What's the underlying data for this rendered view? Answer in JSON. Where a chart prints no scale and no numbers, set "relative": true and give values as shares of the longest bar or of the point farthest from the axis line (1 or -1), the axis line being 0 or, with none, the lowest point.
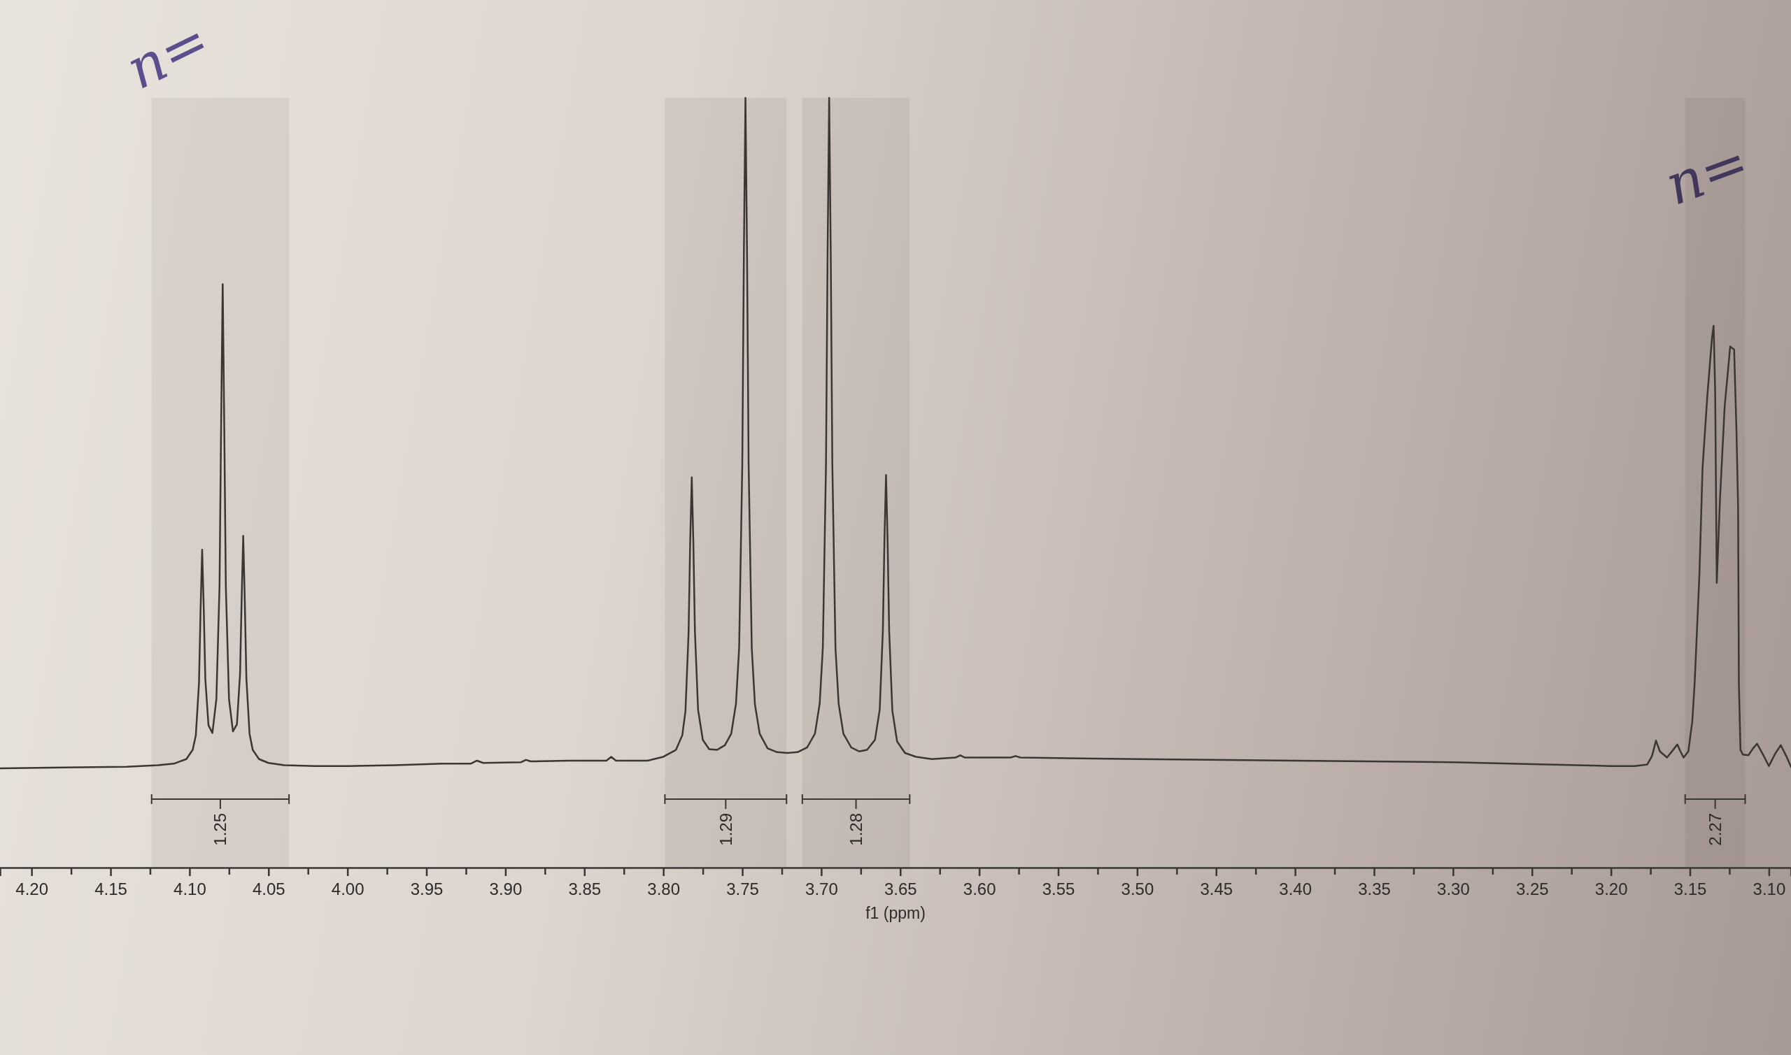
{
  "chart_data": {
    "type": "line",
    "relative": true,
    "xlabel": "f1 (ppm)",
    "xlim": [
      4.22,
      3.086
    ],
    "xticks": [
      {
        "value": 4.2,
        "label": "4.20"
      },
      {
        "value": 4.175,
        "label": null
      },
      4.15,
      {
        "value": 4.125,
        "label": null
      },
      {
        "value": 4.1,
        "label": "4.10"
      },
      {
        "value": 4.075,
        "label": null
      },
      4.05,
      {
        "value": 4.025,
        "label": null
      },
      {
        "value": 4,
        "label": "4.00"
      },
      {
        "value": 3.975,
        "label": null
      },
      3.95,
      {
        "value": 3.925,
        "label": null
      },
      {
        "value": 3.9,
        "label": "3.90"
      },
      {
        "value": 3.875,
        "label": null
      },
      3.85,
      {
        "value": 3.825,
        "label": null
      },
      {
        "value": 3.8,
        "label": "3.80"
      },
      {
        "value": 3.775,
        "label": null
      },
      3.75,
      {
        "value": 3.725,
        "label": null
      },
      {
        "value": 3.7,
        "label": "3.70"
      },
      {
        "value": 3.675,
        "label": null
      },
      3.65,
      {
        "value": 3.625,
        "label": null
      },
      {
        "value": 3.6,
        "label": "3.60"
      },
      {
        "value": 3.575,
        "label": null
      },
      3.55,
      {
        "value": 3.525,
        "label": null
      },
      {
        "value": 3.5,
        "label": "3.50"
      },
      {
        "value": 3.475,
        "label": null
      },
      3.45,
      {
        "value": 3.425,
        "label": null
      },
      {
        "value": 3.4,
        "label": "3.40"
      },
      {
        "value": 3.375,
        "label": null
      },
      3.35,
      {
        "value": 3.325,
        "label": null
      },
      {
        "value": 3.3,
        "label": "3.30"
      },
      {
        "value": 3.275,
        "label": null
      },
      3.25,
      {
        "value": 3.225,
        "label": null
      },
      {
        "value": 3.2,
        "label": "3.20"
      },
      {
        "value": 3.175,
        "label": null
      },
      3.15,
      {
        "value": 3.125,
        "label": null
      },
      {
        "value": 3.1,
        "label": "3.10"
      }
    ],
    "x": [
      4.22,
      4.18,
      4.14,
      4.12,
      4.11,
      4.102,
      4.098,
      4.096,
      4.094,
      4.093,
      4.092,
      4.091,
      4.09,
      4.088,
      4.0855,
      4.083,
      4.081,
      4.08,
      4.079,
      4.078,
      4.077,
      4.075,
      4.0725,
      4.07,
      4.068,
      4.067,
      4.066,
      4.065,
      4.064,
      4.062,
      4.06,
      4.056,
      4.05,
      4.04,
      4.02,
      4,
      3.97,
      3.94,
      3.922,
      3.918,
      3.914,
      3.89,
      3.887,
      3.884,
      3.86,
      3.836,
      3.833,
      3.83,
      3.81,
      3.8,
      3.792,
      3.788,
      3.786,
      3.784,
      3.783,
      3.782,
      3.781,
      3.78,
      3.778,
      3.775,
      3.771,
      3.766,
      3.761,
      3.757,
      3.754,
      3.752,
      3.75,
      3.749,
      3.748,
      3.747,
      3.746,
      3.744,
      3.742,
      3.739,
      3.734,
      3.728,
      3.7215,
      3.715,
      3.709,
      3.704,
      3.701,
      3.699,
      3.697,
      3.696,
      3.695,
      3.694,
      3.693,
      3.691,
      3.689,
      3.686,
      3.681,
      3.676,
      3.671,
      3.666,
      3.663,
      3.661,
      3.66,
      3.659,
      3.658,
      3.657,
      3.655,
      3.652,
      3.647,
      3.64,
      3.63,
      3.615,
      3.612,
      3.609,
      3.58,
      3.577,
      3.574,
      3.5,
      3.4,
      3.3,
      3.24,
      3.2,
      3.185,
      3.177,
      3.174,
      3.1715,
      3.169,
      3.1645,
      3.161,
      3.158,
      3.156,
      3.154,
      3.151,
      3.1485,
      3.147,
      3.144,
      3.142,
      3.139,
      3.136,
      3.135,
      3.134,
      3.133,
      3.131,
      3.128,
      3.1245,
      3.122,
      3.1205,
      3.1195,
      3.119,
      3.118,
      3.1165,
      3.113,
      3.11,
      3.1075,
      3.104,
      3.1,
      3.096,
      3.0925,
      3.089,
      3.086
    ],
    "series": [
      {
        "color": "#3a3633",
        "values": [
          0.129,
          0.13,
          0.131,
          0.133,
          0.135,
          0.141,
          0.153,
          0.172,
          0.24,
          0.335,
          0.413,
          0.337,
          0.245,
          0.185,
          0.175,
          0.219,
          0.366,
          0.573,
          0.758,
          0.572,
          0.365,
          0.219,
          0.177,
          0.186,
          0.252,
          0.348,
          0.431,
          0.346,
          0.246,
          0.174,
          0.153,
          0.141,
          0.136,
          0.133,
          0.132,
          0.132,
          0.133,
          0.135,
          0.135,
          0.139,
          0.136,
          0.137,
          0.14,
          0.138,
          0.139,
          0.139,
          0.144,
          0.139,
          0.139,
          0.144,
          0.153,
          0.172,
          0.203,
          0.306,
          0.423,
          0.507,
          0.423,
          0.307,
          0.205,
          0.166,
          0.154,
          0.153,
          0.159,
          0.174,
          0.213,
          0.286,
          0.525,
          0.798,
          1,
          0.798,
          0.525,
          0.285,
          0.212,
          0.174,
          0.155,
          0.15,
          0.149,
          0.15,
          0.156,
          0.174,
          0.213,
          0.286,
          0.525,
          0.798,
          1,
          0.798,
          0.525,
          0.285,
          0.213,
          0.174,
          0.156,
          0.151,
          0.153,
          0.166,
          0.205,
          0.308,
          0.425,
          0.51,
          0.424,
          0.307,
          0.204,
          0.164,
          0.149,
          0.144,
          0.141,
          0.143,
          0.146,
          0.143,
          0.143,
          0.145,
          0.143,
          0.141,
          0.139,
          0.137,
          0.134,
          0.132,
          0.132,
          0.134,
          0.145,
          0.165,
          0.151,
          0.143,
          0.152,
          0.16,
          0.151,
          0.143,
          0.151,
          0.19,
          0.24,
          0.38,
          0.519,
          0.612,
          0.689,
          0.704,
          0.617,
          0.37,
          0.477,
          0.599,
          0.677,
          0.673,
          0.565,
          0.469,
          0.24,
          0.153,
          0.147,
          0.146,
          0.155,
          0.161,
          0.148,
          0.132,
          0.148,
          0.159,
          0.145,
          0.131
        ]
      }
    ],
    "bands": [
      {
        "axis": "x",
        "from": 4.124,
        "to": 4.037,
        "label": "1.25"
      },
      {
        "axis": "x",
        "from": 3.799,
        "to": 3.722,
        "label": "1.29"
      },
      {
        "axis": "x",
        "from": 3.712,
        "to": 3.644,
        "label": "1.28"
      },
      {
        "axis": "x",
        "from": 3.153,
        "to": 3.115,
        "label": "2.27"
      }
    ],
    "annotations": [
      "n=",
      "n="
    ]
  }
}
